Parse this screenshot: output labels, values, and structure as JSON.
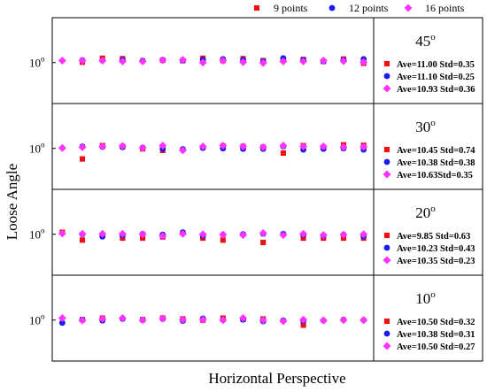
{
  "chart_data": {
    "type": "scatter",
    "xlabel": "Horizontal Perspective",
    "ylabel": "Loose Angle",
    "legend": {
      "placement": "top",
      "entries": [
        {
          "label": "9 points",
          "marker": "square",
          "color": "#ee1111"
        },
        {
          "label": "12 points",
          "marker": "circle",
          "color": "#1a1aee"
        },
        {
          "label": "16 points",
          "marker": "diamond",
          "color": "#ff33ff"
        }
      ]
    },
    "y_axis": {
      "tick_base": "10",
      "tick_sup": "o",
      "scale_note": "each panel centered on ~10-11 degrees"
    },
    "grid": false,
    "panels": [
      {
        "angle_base": "45",
        "angle_sup": "o",
        "ylim": [
          0,
          22
        ],
        "stats": [
          "Ave=11.00 Std=0.35",
          "Ave=11.10 Std=0.25",
          "Ave=10.93 Std=0.36"
        ],
        "series": [
          {
            "name": "9 points",
            "x": [
              3,
              5,
              7,
              11,
              13,
              15,
              17,
              19,
              21,
              23,
              25,
              27,
              29,
              31
            ],
            "y": [
              10.6,
              11.6,
              11.5,
              11.1,
              11.0,
              11.6,
              11.0,
              11.5,
              11.0,
              11.2,
              11.3,
              10.8,
              11.4,
              10.3
            ]
          },
          {
            "name": "12 points",
            "x": [
              3,
              5,
              7,
              9,
              11,
              13,
              15,
              17,
              19,
              21,
              23,
              25,
              27,
              29,
              31
            ],
            "y": [
              11.1,
              11.0,
              11.2,
              11.0,
              11.2,
              11.0,
              11.2,
              11.4,
              11.2,
              10.8,
              11.6,
              11.2,
              10.8,
              11.2,
              11.4
            ]
          },
          {
            "name": "16 points",
            "x": [
              1,
              3,
              5,
              7,
              9,
              11,
              13,
              15,
              17,
              19,
              21,
              23,
              25,
              27,
              29,
              31
            ],
            "y": [
              11.0,
              11.0,
              11.0,
              10.8,
              10.8,
              11.1,
              11.2,
              10.5,
              11.0,
              10.6,
              10.4,
              10.8,
              10.8,
              11.0,
              10.9,
              10.6
            ]
          }
        ]
      },
      {
        "angle_base": "30",
        "angle_sup": "o",
        "ylim": [
          0,
          22
        ],
        "stats": [
          "Ave=10.45 Std=0.74",
          "Ave=10.38 Std=0.38",
          "Ave=10.63Std=0.35"
        ],
        "series": [
          {
            "name": "9 points",
            "x": [
              3,
              5,
              7,
              9,
              11,
              17,
              19,
              21,
              23,
              25,
              27,
              29,
              31
            ],
            "y": [
              7.8,
              11.2,
              11.0,
              10.4,
              10.0,
              11.1,
              11.0,
              10.8,
              9.3,
              11.2,
              10.8,
              11.4,
              11.3
            ]
          },
          {
            "name": "12 points",
            "x": [
              3,
              5,
              7,
              9,
              11,
              13,
              15,
              17,
              19,
              21,
              23,
              25,
              27,
              29,
              31
            ],
            "y": [
              11.0,
              10.9,
              10.8,
              10.7,
              10.4,
              10.3,
              10.6,
              10.5,
              10.4,
              10.4,
              11.0,
              10.2,
              10.4,
              10.5,
              10.2
            ]
          },
          {
            "name": "16 points",
            "x": [
              1,
              3,
              5,
              7,
              9,
              11,
              13,
              15,
              17,
              19,
              21,
              23,
              25,
              27,
              29,
              31
            ],
            "y": [
              10.6,
              10.8,
              11.0,
              11.1,
              10.6,
              11.2,
              10.0,
              11.0,
              11.2,
              11.0,
              10.8,
              11.2,
              11.0,
              11.0,
              10.8,
              10.9
            ]
          }
        ]
      },
      {
        "angle_base": "20",
        "angle_sup": "o",
        "ylim": [
          0,
          22
        ],
        "stats": [
          "Ave=9.85 Std=0.63",
          "Ave=10.23 Std=0.43",
          "Ave=10.35 Std=0.23"
        ],
        "series": [
          {
            "name": "9 points",
            "x": [
              1,
              3,
              7,
              9,
              11,
              15,
              17,
              21,
              25,
              27,
              29,
              31
            ],
            "y": [
              11.0,
              9.0,
              9.5,
              9.5,
              9.8,
              9.5,
              9.0,
              8.4,
              9.5,
              9.5,
              9.5,
              9.5
            ]
          },
          {
            "name": "12 points",
            "x": [
              3,
              5,
              7,
              9,
              11,
              13,
              15,
              17,
              19,
              21,
              23,
              25,
              27,
              29,
              31
            ],
            "y": [
              10.5,
              9.9,
              10.2,
              10.6,
              10.4,
              11.0,
              10.1,
              10.4,
              10.5,
              10.6,
              10.6,
              10.3,
              10.1,
              10.4,
              10.0
            ]
          },
          {
            "name": "16 points",
            "x": [
              1,
              3,
              5,
              7,
              9,
              11,
              13,
              15,
              17,
              19,
              21,
              23,
              25,
              27,
              29,
              31
            ],
            "y": [
              10.7,
              10.6,
              10.6,
              10.6,
              10.5,
              10.0,
              10.6,
              10.5,
              10.4,
              10.3,
              10.8,
              10.3,
              10.6,
              10.3,
              10.4,
              10.5
            ]
          }
        ]
      },
      {
        "angle_base": "10",
        "angle_sup": "o",
        "ylim": [
          0,
          22
        ],
        "stats": [
          "Ave=10.50 Std=0.32",
          "Ave=10.38 Std=0.31",
          "Ave=10.50 Std=0.27"
        ],
        "series": [
          {
            "name": "9 points",
            "x": [
              3,
              5,
              9,
              11,
              13,
              15,
              17,
              19,
              21,
              25
            ],
            "y": [
              10.6,
              11.0,
              10.6,
              11.0,
              10.8,
              10.5,
              11.0,
              10.7,
              10.8,
              9.2
            ]
          },
          {
            "name": "12 points",
            "x": [
              1,
              3,
              5,
              7,
              9,
              11,
              13,
              15,
              17,
              19,
              21,
              23,
              25,
              27,
              29,
              31
            ],
            "y": [
              9.8,
              10.6,
              10.4,
              10.8,
              10.5,
              10.8,
              10.3,
              10.9,
              10.5,
              10.6,
              10.2,
              10.4,
              10.3,
              10.4,
              10.6,
              10.5
            ]
          },
          {
            "name": "16 points",
            "x": [
              1,
              3,
              5,
              7,
              9,
              11,
              13,
              15,
              17,
              19,
              21,
              23,
              25,
              27,
              29,
              31
            ],
            "y": [
              11.0,
              10.4,
              10.8,
              11.0,
              10.5,
              10.9,
              10.6,
              10.6,
              10.5,
              11.0,
              10.5,
              10.2,
              10.6,
              10.4,
              10.5,
              10.5
            ]
          }
        ]
      }
    ]
  }
}
